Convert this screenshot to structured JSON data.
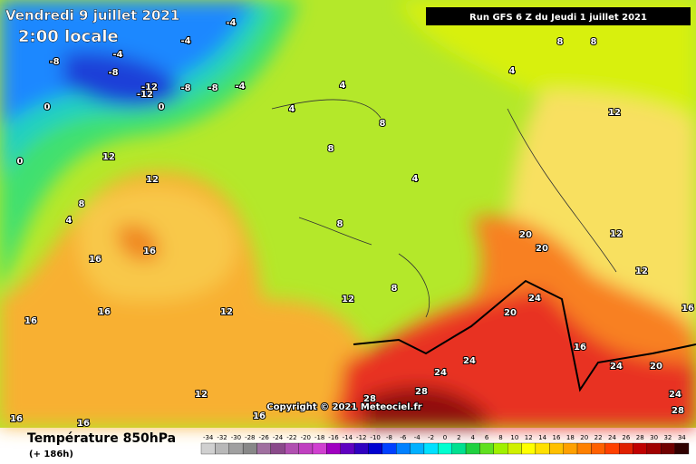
{
  "header": {
    "date": "Vendredi 9 juillet 2021",
    "time": "2:00 locale",
    "run": "Run GFS 6 Z du Jeudi 1 juillet 2021"
  },
  "copyright": "Copyright © 2021 Meteociel.fr",
  "footer": {
    "title": "Température 850hPa",
    "lead": "(+ 186h)"
  },
  "legend": {
    "labels": [
      -34,
      -32,
      -30,
      -28,
      -26,
      -24,
      -22,
      -20,
      -18,
      -16,
      -14,
      -12,
      -10,
      -8,
      -6,
      -4,
      -2,
      0,
      2,
      4,
      6,
      8,
      10,
      12,
      14,
      16,
      18,
      20,
      22,
      24,
      26,
      28,
      30,
      32,
      34
    ],
    "colors": [
      "#d0d0d0",
      "#b8b8b8",
      "#a0a0a0",
      "#888888",
      "#a070a0",
      "#8a4a8a",
      "#b050b0",
      "#c040c0",
      "#d040d0",
      "#a000c0",
      "#6000c0",
      "#3000c0",
      "#0000d0",
      "#0040ff",
      "#0080ff",
      "#00b0ff",
      "#00e0ff",
      "#00ffd0",
      "#00e090",
      "#20d040",
      "#60e020",
      "#a0f000",
      "#d0f000",
      "#ffff00",
      "#ffe000",
      "#ffc000",
      "#ffa000",
      "#ff8000",
      "#ff6000",
      "#ff4000",
      "#e02000",
      "#c00000",
      "#a00000",
      "#700000",
      "#300000"
    ]
  },
  "map": {
    "contour_labels": [
      -4,
      -4,
      -4,
      -8,
      -8,
      -12,
      -12,
      -8,
      -8,
      -4,
      0,
      0,
      4,
      4,
      8,
      8,
      12,
      12,
      0,
      4,
      8,
      4,
      8,
      4,
      8,
      8,
      12,
      16,
      16,
      16,
      16,
      12,
      12,
      8,
      20,
      20,
      12,
      12,
      24,
      20,
      24,
      24,
      16,
      24,
      20,
      24,
      28,
      28,
      12,
      16,
      16,
      16,
      28,
      16
    ]
  }
}
